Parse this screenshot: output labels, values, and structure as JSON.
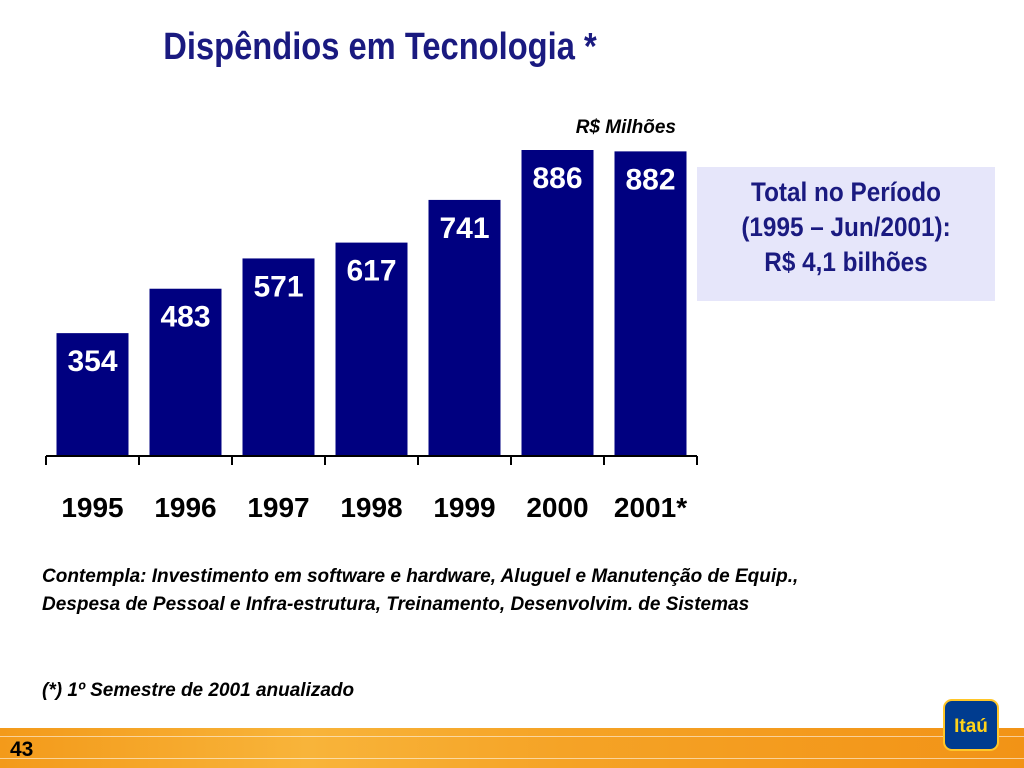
{
  "slide": {
    "title": "Dispêndios em Tecnologia *",
    "unit": "R$ Milhões",
    "page_number": "43"
  },
  "total_box": {
    "line1": "Total no Período",
    "line2": "(1995 – Jun/2001):",
    "line3": "R$ 4,1 bilhões"
  },
  "footnotes": {
    "note1": "Contempla: Investimento em software e hardware, Aluguel e Manutenção de Equip., Despesa de Pessoal e Infra-estrutura, Treinamento, Desenvolvim. de Sistemas",
    "note2": "(*) 1º Semestre de 2001 anualizado"
  },
  "logo": {
    "text": "Itaú"
  },
  "colors": {
    "bar": "#000080",
    "title": "#1a1a80",
    "box_bg": "#e6e6fa",
    "bottom_bar": "#f5a326"
  },
  "chart_data": {
    "type": "bar",
    "title": "Dispêndios em Tecnologia *",
    "ylabel": "R$ Milhões",
    "xlabel": "",
    "categories": [
      "1995",
      "1996",
      "1997",
      "1998",
      "1999",
      "2000",
      "2001*"
    ],
    "values": [
      354,
      483,
      571,
      617,
      741,
      886,
      882
    ],
    "ylim": [
      0,
      886
    ],
    "grid": false,
    "legend": "none"
  }
}
